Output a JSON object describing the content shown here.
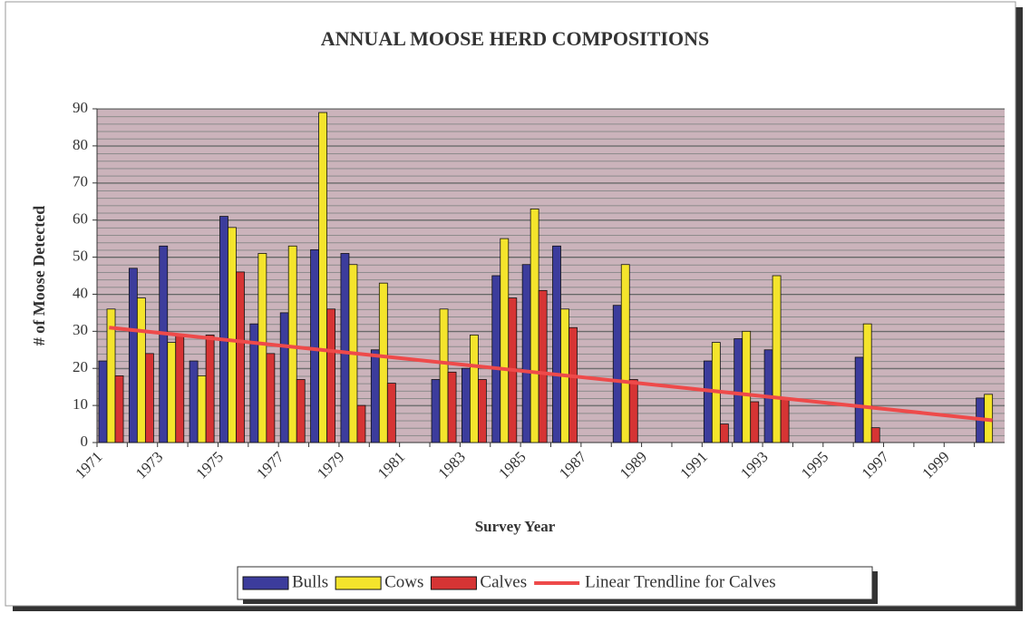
{
  "chart_data": {
    "type": "bar",
    "title": "ANNUAL MOOSE HERD COMPOSITIONS",
    "x_label": "Survey Year",
    "y_label": "# of Moose Detected",
    "categories": [
      "1971",
      null,
      "1973",
      null,
      "1975",
      null,
      "1977",
      null,
      "1979",
      null,
      "1981",
      null,
      "1983",
      null,
      "1985",
      null,
      "1987",
      null,
      "1989",
      null,
      "1991",
      null,
      "1993",
      null,
      "1995",
      null,
      "1997",
      null,
      "1999",
      null
    ],
    "series": [
      {
        "name": "Bulls",
        "color": "#3c3c9c",
        "values": [
          22,
          47,
          53,
          22,
          61,
          32,
          35,
          52,
          51,
          25,
          null,
          17,
          20,
          45,
          48,
          53,
          null,
          37,
          null,
          null,
          22,
          28,
          25,
          null,
          null,
          23,
          null,
          null,
          null,
          12
        ]
      },
      {
        "name": "Cows",
        "color": "#f4e42c",
        "values": [
          36,
          39,
          27,
          18,
          58,
          51,
          53,
          89,
          48,
          43,
          null,
          36,
          29,
          55,
          63,
          36,
          null,
          48,
          null,
          null,
          27,
          30,
          45,
          null,
          null,
          32,
          null,
          null,
          null,
          13
        ]
      },
      {
        "name": "Calves",
        "color": "#d63434",
        "values": [
          18,
          24,
          29,
          29,
          46,
          24,
          17,
          36,
          10,
          16,
          null,
          19,
          17,
          39,
          41,
          31,
          null,
          17,
          null,
          null,
          5,
          11,
          12,
          null,
          null,
          4,
          null,
          null,
          null,
          null
        ]
      }
    ],
    "trendline": {
      "name": "Linear Trendline for Calves",
      "color": "#ee4a4a",
      "values": [
        31,
        6
      ]
    },
    "ylim": [
      0,
      90
    ],
    "yticks": [
      0,
      10,
      20,
      30,
      40,
      50,
      60,
      70,
      80,
      90
    ],
    "grid": true
  }
}
